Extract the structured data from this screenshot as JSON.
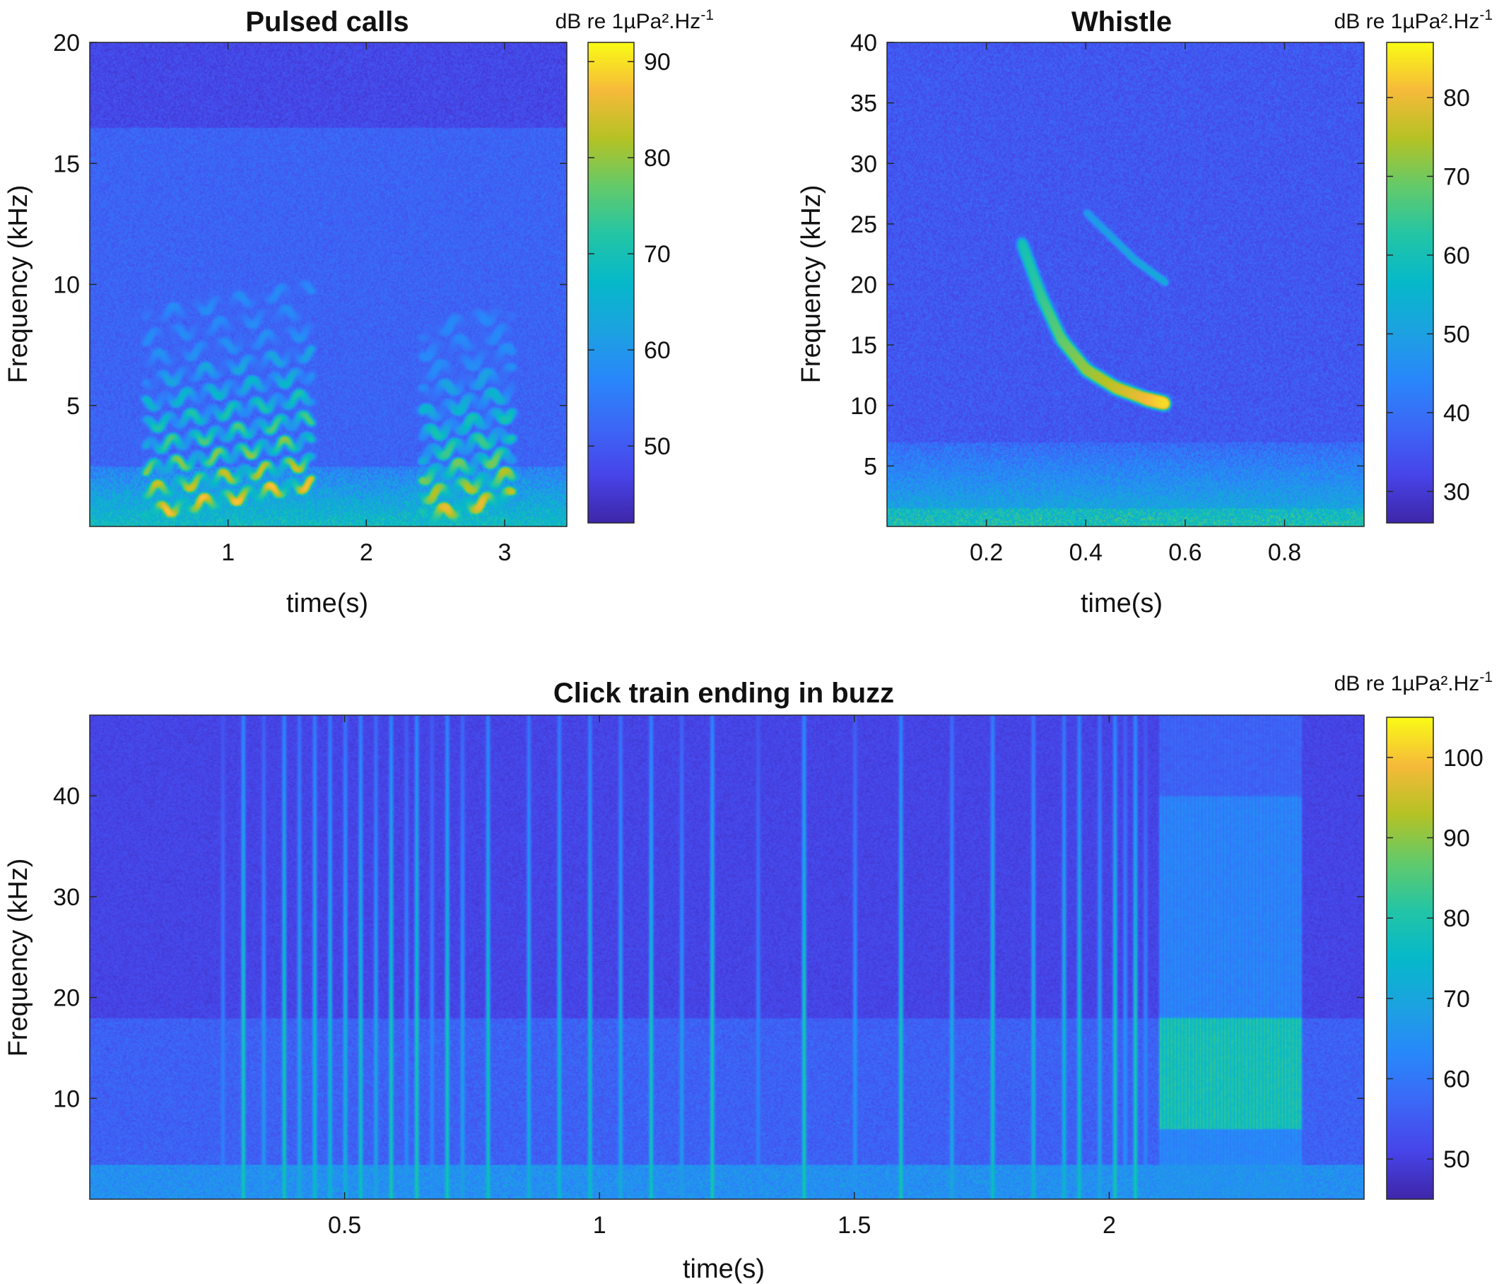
{
  "chart_data": [
    {
      "type": "heatmap",
      "title": "Pulsed calls",
      "xlabel": "time(s)",
      "ylabel": "Frequency (kHz)",
      "xlim": [
        0,
        3.45
      ],
      "ylim": [
        0,
        20
      ],
      "xticks": [
        1,
        2,
        3
      ],
      "yticks": [
        5,
        10,
        15,
        20
      ],
      "colorbar": {
        "label_main": "dB re 1µPa².Hz",
        "label_exp": "-1",
        "range": [
          42,
          92
        ],
        "ticks": [
          50,
          60,
          70,
          80,
          90
        ]
      },
      "features": {
        "harmonic_groups": [
          {
            "t_start": 0.4,
            "t_end": 1.6,
            "f_base": 0.6,
            "f_slope": 1.0,
            "spacing": 0.9,
            "count": 10,
            "peak_db": 88
          },
          {
            "t_start": 2.4,
            "t_end": 3.05,
            "f_base": 0.4,
            "f_slope": 1.4,
            "spacing": 0.85,
            "count": 10,
            "peak_db": 86
          }
        ],
        "noise_cutoff_khz": 16.5
      }
    },
    {
      "type": "heatmap",
      "title": "Whistle",
      "xlabel": "time(s)",
      "ylabel": "Frequency (kHz)",
      "xlim": [
        0,
        0.96
      ],
      "ylim": [
        0,
        40
      ],
      "xticks": [
        0.2,
        0.4,
        0.6,
        0.8
      ],
      "yticks": [
        5,
        10,
        15,
        20,
        25,
        30,
        35,
        40
      ],
      "colorbar": {
        "label_main": "dB re 1µPa².Hz",
        "label_exp": "-1",
        "range": [
          26,
          87
        ],
        "ticks": [
          30,
          40,
          50,
          60,
          70,
          80
        ]
      },
      "features": {
        "contour": [
          [
            0.27,
            23.5
          ],
          [
            0.31,
            19.0
          ],
          [
            0.35,
            15.5
          ],
          [
            0.4,
            13.0
          ],
          [
            0.46,
            11.5
          ],
          [
            0.52,
            10.6
          ],
          [
            0.56,
            10.2
          ]
        ],
        "harmonic": [
          [
            0.4,
            26.0
          ],
          [
            0.45,
            24.0
          ],
          [
            0.5,
            22.0
          ],
          [
            0.56,
            20.2
          ]
        ]
      }
    },
    {
      "type": "heatmap",
      "title": "Click train ending in buzz",
      "xlabel": "time(s)",
      "ylabel": "Frequency (kHz)",
      "xlim": [
        0,
        2.5
      ],
      "ylim": [
        0,
        48
      ],
      "xticks": [
        0.5,
        1,
        1.5,
        2
      ],
      "yticks": [
        10,
        20,
        30,
        40
      ],
      "colorbar": {
        "label_main": "dB re 1µPa².Hz",
        "label_exp": "-1",
        "range": [
          45,
          105
        ],
        "ticks": [
          50,
          60,
          70,
          80,
          90,
          100
        ]
      },
      "features": {
        "clicks_s": [
          0.26,
          0.3,
          0.34,
          0.38,
          0.41,
          0.44,
          0.47,
          0.5,
          0.53,
          0.56,
          0.59,
          0.62,
          0.64,
          0.67,
          0.7,
          0.73,
          0.78,
          0.86,
          0.92,
          0.98,
          1.04,
          1.1,
          1.16,
          1.22,
          1.31,
          1.4,
          1.5,
          1.59,
          1.69,
          1.77,
          1.85,
          1.91,
          1.94,
          1.98,
          2.01,
          2.03,
          2.05,
          2.07
        ],
        "buzz_start_s": 2.1,
        "buzz_end_s": 2.38,
        "buzz_count": 40
      }
    }
  ]
}
